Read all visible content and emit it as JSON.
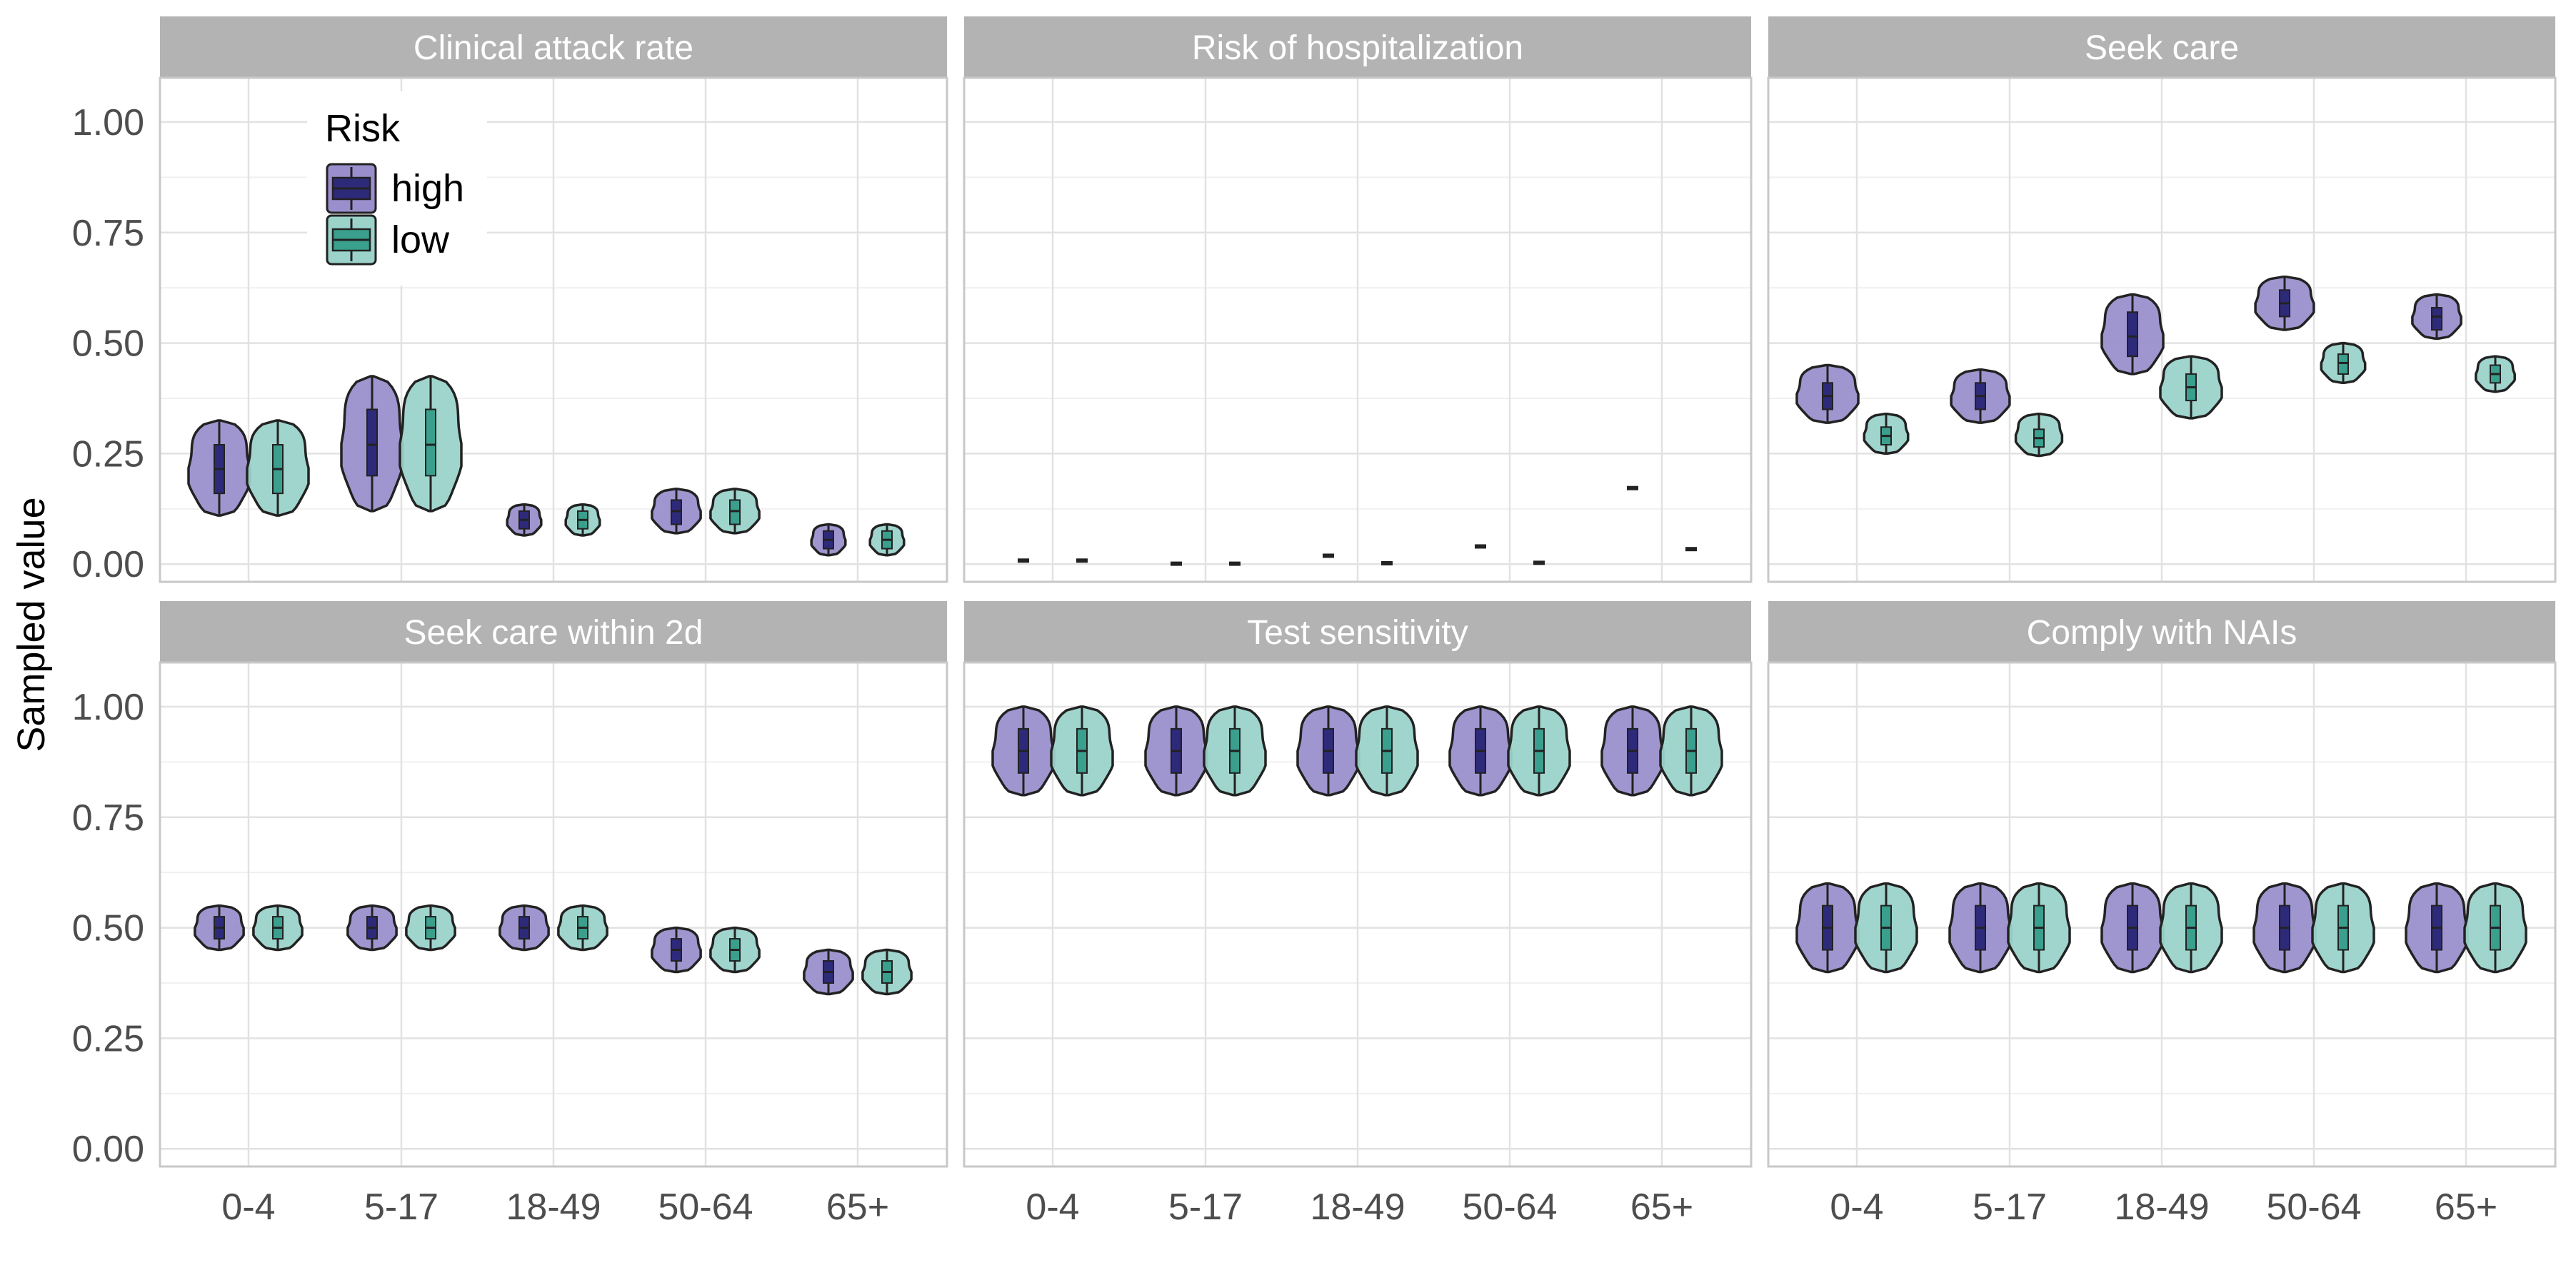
{
  "chart_data": {
    "type": "violin",
    "ylabel": "Sampled value",
    "ylim": [
      -0.04,
      1.1
    ],
    "y_ticks": [
      "0.00",
      "0.25",
      "0.50",
      "0.75",
      "1.00"
    ],
    "categories": [
      "0-4",
      "5-17",
      "18-49",
      "50-64",
      "65+"
    ],
    "legend": {
      "title": "Risk",
      "position": "inside-top-left of first panel",
      "entries": [
        {
          "label": "high",
          "fill": "#9a8fcc",
          "box": "#2e2a7a"
        },
        {
          "label": "low",
          "fill": "#9bd3ca",
          "box": "#3a9f8d"
        }
      ]
    },
    "panels": [
      {
        "title": "Clinical attack rate",
        "groups": [
          {
            "cat": "0-4",
            "high": {
              "min": 0.11,
              "q1": 0.16,
              "med": 0.215,
              "q3": 0.27,
              "max": 0.325
            },
            "low": {
              "min": 0.11,
              "q1": 0.16,
              "med": 0.215,
              "q3": 0.27,
              "max": 0.325
            }
          },
          {
            "cat": "5-17",
            "high": {
              "min": 0.12,
              "q1": 0.2,
              "med": 0.27,
              "q3": 0.35,
              "max": 0.425
            },
            "low": {
              "min": 0.12,
              "q1": 0.2,
              "med": 0.27,
              "q3": 0.35,
              "max": 0.425
            }
          },
          {
            "cat": "18-49",
            "high": {
              "min": 0.065,
              "q1": 0.08,
              "med": 0.1,
              "q3": 0.12,
              "max": 0.135
            },
            "low": {
              "min": 0.065,
              "q1": 0.08,
              "med": 0.1,
              "q3": 0.12,
              "max": 0.135
            }
          },
          {
            "cat": "50-64",
            "high": {
              "min": 0.07,
              "q1": 0.09,
              "med": 0.12,
              "q3": 0.145,
              "max": 0.17
            },
            "low": {
              "min": 0.07,
              "q1": 0.09,
              "med": 0.12,
              "q3": 0.145,
              "max": 0.17
            }
          },
          {
            "cat": "65+",
            "high": {
              "min": 0.02,
              "q1": 0.035,
              "med": 0.055,
              "q3": 0.075,
              "max": 0.09
            },
            "low": {
              "min": 0.02,
              "q1": 0.035,
              "med": 0.055,
              "q3": 0.075,
              "max": 0.09
            }
          }
        ]
      },
      {
        "title": "Risk of hospitalization",
        "groups": [
          {
            "cat": "0-4",
            "high": {
              "min": 0.006,
              "q1": 0.007,
              "med": 0.008,
              "q3": 0.009,
              "max": 0.01
            },
            "low": {
              "min": 0.006,
              "q1": 0.007,
              "med": 0.008,
              "q3": 0.009,
              "max": 0.01
            }
          },
          {
            "cat": "5-17",
            "high": {
              "min": 0.0,
              "q1": 0.0005,
              "med": 0.001,
              "q3": 0.0015,
              "max": 0.002
            },
            "low": {
              "min": 0.0,
              "q1": 0.0005,
              "med": 0.001,
              "q3": 0.0015,
              "max": 0.002
            }
          },
          {
            "cat": "18-49",
            "high": {
              "min": 0.017,
              "q1": 0.018,
              "med": 0.019,
              "q3": 0.02,
              "max": 0.021
            },
            "low": {
              "min": 0.0,
              "q1": 0.001,
              "med": 0.002,
              "q3": 0.003,
              "max": 0.004
            }
          },
          {
            "cat": "50-64",
            "high": {
              "min": 0.037,
              "q1": 0.038,
              "med": 0.04,
              "q3": 0.042,
              "max": 0.043
            },
            "low": {
              "min": 0.001,
              "q1": 0.002,
              "med": 0.003,
              "q3": 0.004,
              "max": 0.005
            }
          },
          {
            "cat": "65+",
            "high": {
              "min": 0.168,
              "q1": 0.17,
              "med": 0.172,
              "q3": 0.174,
              "max": 0.176
            },
            "low": {
              "min": 0.03,
              "q1": 0.032,
              "med": 0.034,
              "q3": 0.036,
              "max": 0.038
            }
          }
        ]
      },
      {
        "title": "Seek care",
        "groups": [
          {
            "cat": "0-4",
            "high": {
              "min": 0.32,
              "q1": 0.35,
              "med": 0.38,
              "q3": 0.41,
              "max": 0.45
            },
            "low": {
              "min": 0.25,
              "q1": 0.27,
              "med": 0.29,
              "q3": 0.31,
              "max": 0.34
            }
          },
          {
            "cat": "5-17",
            "high": {
              "min": 0.32,
              "q1": 0.35,
              "med": 0.38,
              "q3": 0.41,
              "max": 0.44
            },
            "low": {
              "min": 0.245,
              "q1": 0.265,
              "med": 0.285,
              "q3": 0.305,
              "max": 0.34
            }
          },
          {
            "cat": "18-49",
            "high": {
              "min": 0.43,
              "q1": 0.47,
              "med": 0.515,
              "q3": 0.57,
              "max": 0.61
            },
            "low": {
              "min": 0.33,
              "q1": 0.37,
              "med": 0.4,
              "q3": 0.43,
              "max": 0.47
            }
          },
          {
            "cat": "50-64",
            "high": {
              "min": 0.53,
              "q1": 0.56,
              "med": 0.59,
              "q3": 0.62,
              "max": 0.65
            },
            "low": {
              "min": 0.41,
              "q1": 0.43,
              "med": 0.455,
              "q3": 0.475,
              "max": 0.5
            }
          },
          {
            "cat": "65+",
            "high": {
              "min": 0.51,
              "q1": 0.53,
              "med": 0.56,
              "q3": 0.58,
              "max": 0.61
            },
            "low": {
              "min": 0.39,
              "q1": 0.41,
              "med": 0.43,
              "q3": 0.45,
              "max": 0.47
            }
          }
        ]
      },
      {
        "title": "Seek care within 2d",
        "groups": [
          {
            "cat": "0-4",
            "high": {
              "min": 0.45,
              "q1": 0.475,
              "med": 0.5,
              "q3": 0.525,
              "max": 0.55
            },
            "low": {
              "min": 0.45,
              "q1": 0.475,
              "med": 0.5,
              "q3": 0.525,
              "max": 0.55
            }
          },
          {
            "cat": "5-17",
            "high": {
              "min": 0.45,
              "q1": 0.475,
              "med": 0.5,
              "q3": 0.525,
              "max": 0.55
            },
            "low": {
              "min": 0.45,
              "q1": 0.475,
              "med": 0.5,
              "q3": 0.525,
              "max": 0.55
            }
          },
          {
            "cat": "18-49",
            "high": {
              "min": 0.45,
              "q1": 0.475,
              "med": 0.5,
              "q3": 0.525,
              "max": 0.55
            },
            "low": {
              "min": 0.45,
              "q1": 0.475,
              "med": 0.5,
              "q3": 0.525,
              "max": 0.55
            }
          },
          {
            "cat": "50-64",
            "high": {
              "min": 0.4,
              "q1": 0.425,
              "med": 0.45,
              "q3": 0.475,
              "max": 0.5
            },
            "low": {
              "min": 0.4,
              "q1": 0.425,
              "med": 0.45,
              "q3": 0.475,
              "max": 0.5
            }
          },
          {
            "cat": "65+",
            "high": {
              "min": 0.35,
              "q1": 0.375,
              "med": 0.4,
              "q3": 0.425,
              "max": 0.45
            },
            "low": {
              "min": 0.35,
              "q1": 0.375,
              "med": 0.4,
              "q3": 0.425,
              "max": 0.45
            }
          }
        ]
      },
      {
        "title": "Test sensitivity",
        "groups": [
          {
            "cat": "0-4",
            "high": {
              "min": 0.8,
              "q1": 0.85,
              "med": 0.9,
              "q3": 0.95,
              "max": 1.0
            },
            "low": {
              "min": 0.8,
              "q1": 0.85,
              "med": 0.9,
              "q3": 0.95,
              "max": 1.0
            }
          },
          {
            "cat": "5-17",
            "high": {
              "min": 0.8,
              "q1": 0.85,
              "med": 0.9,
              "q3": 0.95,
              "max": 1.0
            },
            "low": {
              "min": 0.8,
              "q1": 0.85,
              "med": 0.9,
              "q3": 0.95,
              "max": 1.0
            }
          },
          {
            "cat": "18-49",
            "high": {
              "min": 0.8,
              "q1": 0.85,
              "med": 0.9,
              "q3": 0.95,
              "max": 1.0
            },
            "low": {
              "min": 0.8,
              "q1": 0.85,
              "med": 0.9,
              "q3": 0.95,
              "max": 1.0
            }
          },
          {
            "cat": "50-64",
            "high": {
              "min": 0.8,
              "q1": 0.85,
              "med": 0.9,
              "q3": 0.95,
              "max": 1.0
            },
            "low": {
              "min": 0.8,
              "q1": 0.85,
              "med": 0.9,
              "q3": 0.95,
              "max": 1.0
            }
          },
          {
            "cat": "65+",
            "high": {
              "min": 0.8,
              "q1": 0.85,
              "med": 0.9,
              "q3": 0.95,
              "max": 1.0
            },
            "low": {
              "min": 0.8,
              "q1": 0.85,
              "med": 0.9,
              "q3": 0.95,
              "max": 1.0
            }
          }
        ]
      },
      {
        "title": "Comply with NAIs",
        "groups": [
          {
            "cat": "0-4",
            "high": {
              "min": 0.4,
              "q1": 0.45,
              "med": 0.5,
              "q3": 0.55,
              "max": 0.6
            },
            "low": {
              "min": 0.4,
              "q1": 0.45,
              "med": 0.5,
              "q3": 0.55,
              "max": 0.6
            }
          },
          {
            "cat": "5-17",
            "high": {
              "min": 0.4,
              "q1": 0.45,
              "med": 0.5,
              "q3": 0.55,
              "max": 0.6
            },
            "low": {
              "min": 0.4,
              "q1": 0.45,
              "med": 0.5,
              "q3": 0.55,
              "max": 0.6
            }
          },
          {
            "cat": "18-49",
            "high": {
              "min": 0.4,
              "q1": 0.45,
              "med": 0.5,
              "q3": 0.55,
              "max": 0.6
            },
            "low": {
              "min": 0.4,
              "q1": 0.45,
              "med": 0.5,
              "q3": 0.55,
              "max": 0.6
            }
          },
          {
            "cat": "50-64",
            "high": {
              "min": 0.4,
              "q1": 0.45,
              "med": 0.5,
              "q3": 0.55,
              "max": 0.6
            },
            "low": {
              "min": 0.4,
              "q1": 0.45,
              "med": 0.5,
              "q3": 0.55,
              "max": 0.6
            }
          },
          {
            "cat": "65+",
            "high": {
              "min": 0.4,
              "q1": 0.45,
              "med": 0.5,
              "q3": 0.55,
              "max": 0.6
            },
            "low": {
              "min": 0.4,
              "q1": 0.45,
              "med": 0.5,
              "q3": 0.55,
              "max": 0.6
            }
          }
        ]
      }
    ]
  }
}
